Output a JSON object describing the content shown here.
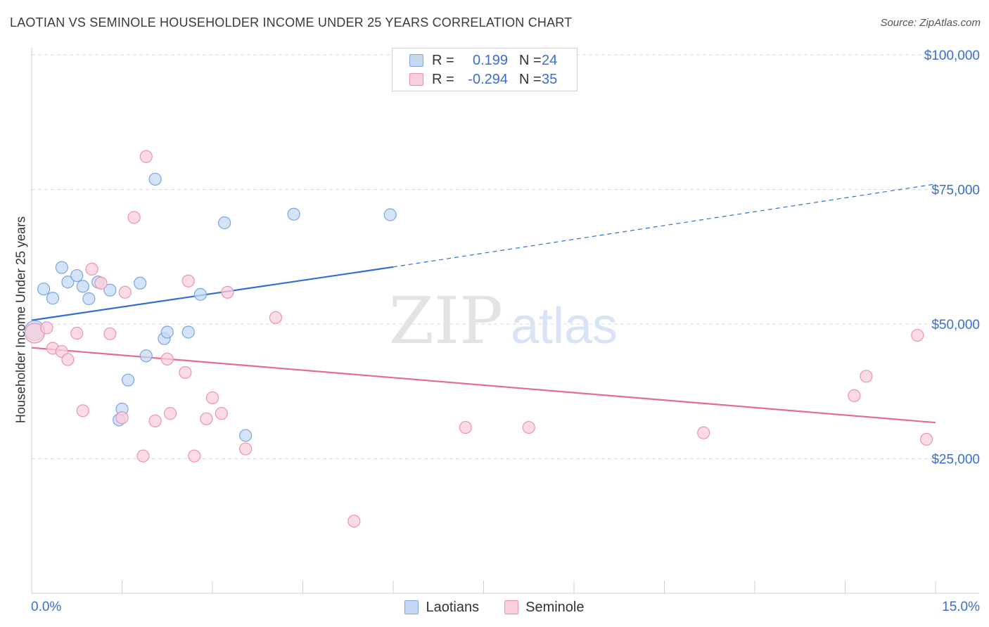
{
  "title": "LAOTIAN VS SEMINOLE HOUSEHOLDER INCOME UNDER 25 YEARS CORRELATION CHART",
  "source": "Source: ZipAtlas.com",
  "watermark": {
    "zip": "ZIP",
    "atlas": "atlas"
  },
  "colors": {
    "blue_fill": "#c5d9f5",
    "blue_stroke": "#7aa6e0",
    "blue_line": "#2e6fd1",
    "pink_fill": "#f9cfdc",
    "pink_stroke": "#ec93b0",
    "pink_line": "#e56b95",
    "tick_label": "#3a6fd0",
    "grid": "#d8d8d8"
  },
  "legend": {
    "rows": [
      {
        "r_label": "R =",
        "r_value": "0.199",
        "n_label": "N =",
        "n_value": "24",
        "color": "blue"
      },
      {
        "r_label": "R =",
        "r_value": "-0.294",
        "n_label": "N =",
        "n_value": "35",
        "color": "pink"
      }
    ]
  },
  "bottom_legend": {
    "items": [
      "Laotians",
      "Seminole"
    ]
  },
  "chart_data": {
    "type": "scatter",
    "title": "LAOTIAN VS SEMINOLE HOUSEHOLDER INCOME UNDER 25 YEARS CORRELATION CHART",
    "xlabel": "",
    "ylabel": "Householder Income Under 25 years",
    "xlim": [
      0,
      15
    ],
    "ylim": [
      0,
      100000
    ],
    "x_tick_labels": [
      "0.0%",
      "15.0%"
    ],
    "y_ticks": [
      25000,
      50000,
      75000,
      100000
    ],
    "y_tick_labels": [
      "$25,000",
      "$50,000",
      "$75,000",
      "$100,000"
    ],
    "grid": true,
    "legend_placement": "top-center",
    "series": [
      {
        "name": "Laotians",
        "color": "blue",
        "points": [
          {
            "x": 0.05,
            "y": 48800,
            "big": true
          },
          {
            "x": 0.2,
            "y": 56500
          },
          {
            "x": 0.35,
            "y": 54800
          },
          {
            "x": 0.5,
            "y": 60500
          },
          {
            "x": 0.6,
            "y": 57800
          },
          {
            "x": 0.75,
            "y": 59000
          },
          {
            "x": 0.85,
            "y": 57000
          },
          {
            "x": 0.95,
            "y": 54700
          },
          {
            "x": 1.1,
            "y": 57800
          },
          {
            "x": 1.3,
            "y": 56300
          },
          {
            "x": 1.45,
            "y": 32200
          },
          {
            "x": 1.5,
            "y": 34200
          },
          {
            "x": 1.6,
            "y": 39600
          },
          {
            "x": 1.8,
            "y": 57600
          },
          {
            "x": 1.9,
            "y": 44100
          },
          {
            "x": 2.05,
            "y": 76900
          },
          {
            "x": 2.2,
            "y": 47300
          },
          {
            "x": 2.25,
            "y": 48500
          },
          {
            "x": 2.6,
            "y": 48500
          },
          {
            "x": 2.8,
            "y": 55500
          },
          {
            "x": 3.2,
            "y": 68800
          },
          {
            "x": 3.55,
            "y": 29300
          },
          {
            "x": 4.35,
            "y": 70400
          },
          {
            "x": 5.95,
            "y": 70300
          }
        ],
        "trend": {
          "x0": 0,
          "y0": 50700,
          "x1": 6.0,
          "y1": 60600,
          "dashed_to_x": 15,
          "dashed_to_y": 76000
        }
      },
      {
        "name": "Seminole",
        "color": "pink",
        "points": [
          {
            "x": 0.05,
            "y": 48300,
            "big": true
          },
          {
            "x": 0.25,
            "y": 49300
          },
          {
            "x": 0.35,
            "y": 45500
          },
          {
            "x": 0.5,
            "y": 44900
          },
          {
            "x": 0.6,
            "y": 43400
          },
          {
            "x": 0.75,
            "y": 48300
          },
          {
            "x": 0.85,
            "y": 33900
          },
          {
            "x": 1.0,
            "y": 60200
          },
          {
            "x": 1.15,
            "y": 57600
          },
          {
            "x": 1.3,
            "y": 48200
          },
          {
            "x": 1.5,
            "y": 32600
          },
          {
            "x": 1.55,
            "y": 55900
          },
          {
            "x": 1.7,
            "y": 69800
          },
          {
            "x": 1.85,
            "y": 25500
          },
          {
            "x": 1.9,
            "y": 81100
          },
          {
            "x": 2.05,
            "y": 32000
          },
          {
            "x": 2.25,
            "y": 43500
          },
          {
            "x": 2.3,
            "y": 33400
          },
          {
            "x": 2.55,
            "y": 41000
          },
          {
            "x": 2.6,
            "y": 58000
          },
          {
            "x": 2.7,
            "y": 25500
          },
          {
            "x": 2.9,
            "y": 32400
          },
          {
            "x": 3.0,
            "y": 36300
          },
          {
            "x": 3.15,
            "y": 33400
          },
          {
            "x": 3.25,
            "y": 55900
          },
          {
            "x": 3.55,
            "y": 26800
          },
          {
            "x": 4.05,
            "y": 51200
          },
          {
            "x": 5.35,
            "y": 13400
          },
          {
            "x": 7.2,
            "y": 30800
          },
          {
            "x": 8.25,
            "y": 30800
          },
          {
            "x": 11.15,
            "y": 29800
          },
          {
            "x": 13.65,
            "y": 36700
          },
          {
            "x": 13.85,
            "y": 40300
          },
          {
            "x": 14.7,
            "y": 47900
          },
          {
            "x": 14.85,
            "y": 28600
          }
        ],
        "trend": {
          "x0": 0,
          "y0": 45600,
          "x1": 15,
          "y1": 31700
        }
      }
    ]
  }
}
